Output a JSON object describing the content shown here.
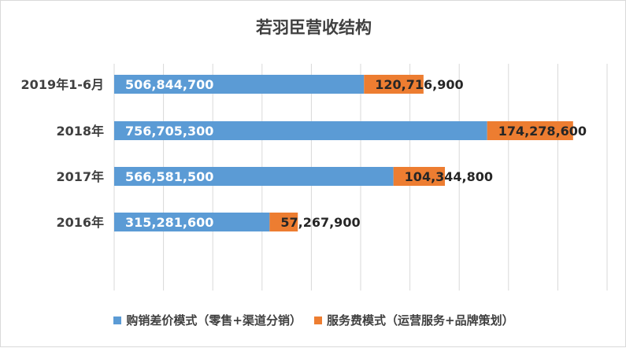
{
  "chart_data": {
    "type": "bar",
    "orientation": "horizontal",
    "stacked": true,
    "title": "若羽臣营收结构",
    "categories": [
      "2019年1-6月",
      "2018年",
      "2017年",
      "2016年"
    ],
    "series": [
      {
        "name": "购销差价模式（零售+渠道分销）",
        "color": "#5b9bd5",
        "values": [
          506844700,
          756705300,
          566581500,
          315281600
        ],
        "labels": [
          "506,844,700",
          "756,705,300",
          "566,581,500",
          "315,281,600"
        ]
      },
      {
        "name": "服务费模式（运营服务+品牌策划）",
        "color": "#ed7d31",
        "values": [
          120716900,
          174278600,
          104344800,
          57267900
        ],
        "labels": [
          "120,716,900",
          "174,278,600",
          "104,344,800",
          "57,267,900"
        ]
      }
    ],
    "xlim": [
      0,
      1000000000
    ],
    "grid": true,
    "legend_position": "bottom"
  }
}
